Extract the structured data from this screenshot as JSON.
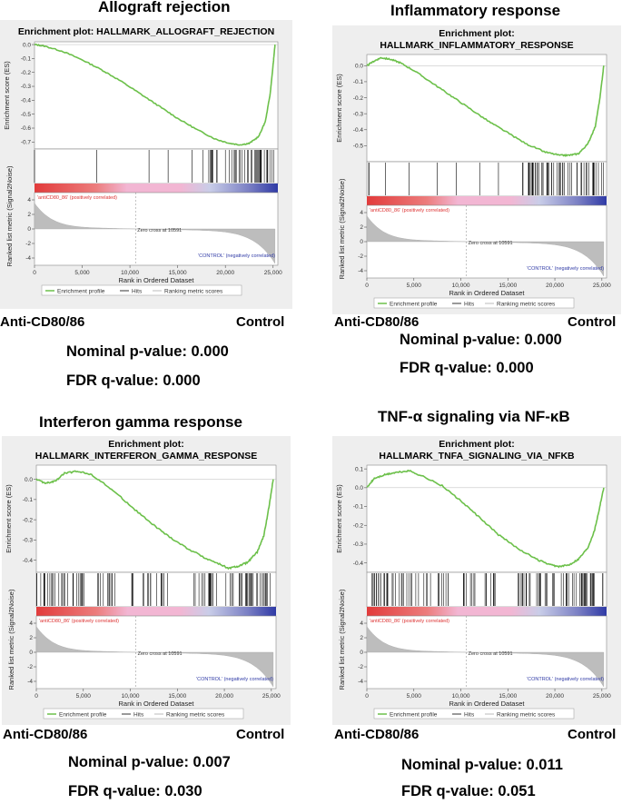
{
  "shared": {
    "es_ylabel": "Enrichment score (ES)",
    "rank_ylabel": "Ranked list metric (Signal2Noise)",
    "xlabel": "Rank in Ordered Dataset",
    "pos_label": "'antiCD80_86' (positively correlated)",
    "neg_label": "'CONTROL' (negatively correlated)",
    "zero_cross": "Zero cross at 10591",
    "legend": [
      "Enrichment profile",
      "Hits",
      "Ranking metric scores"
    ],
    "x_ticks": [
      "0",
      "5,000",
      "10,000",
      "15,000",
      "20,000",
      "25,000"
    ],
    "rank_ticks": [
      "4",
      "2",
      "0",
      "-2",
      "-4"
    ],
    "left_group": "Anti-CD80/86",
    "right_group": "Control",
    "colors": {
      "profile": "#6cc04a",
      "heat_red": "#e23b3b",
      "heat_pink": "#f2b6d3",
      "heat_blue": "#2f3aa6",
      "metric": "#bdbdbd"
    }
  },
  "panels": [
    {
      "heading": "Allograft rejection",
      "plot_title": "Enrichment plot: HALLMARK_ALLOGRAFT_REJECTION",
      "nominal_p": "Nominal p-value: 0.000",
      "fdr_q": "FDR q-value: 0.000",
      "chart_data": {
        "type": "line",
        "title": "Enrichment plot: HALLMARK_ALLOGRAFT_REJECTION",
        "xlabel": "Rank in Ordered Dataset",
        "ylabel": "Enrichment score (ES)",
        "xlim": [
          0,
          25500
        ],
        "ylim": [
          -0.75,
          0.02
        ],
        "y_ticks": [
          "0.0",
          "-0.1",
          "-0.2",
          "-0.3",
          "-0.4",
          "-0.5",
          "-0.6",
          "-0.7"
        ],
        "y_tick_values": [
          0,
          -0.1,
          -0.2,
          -0.3,
          -0.4,
          -0.5,
          -0.6,
          -0.7
        ],
        "x": [
          0,
          1000,
          3000,
          5000,
          7000,
          9000,
          11000,
          13000,
          15000,
          17000,
          19000,
          20500,
          21500,
          22500,
          23500,
          24200,
          24700,
          25000,
          25200
        ],
        "values": [
          0.0,
          -0.01,
          -0.05,
          -0.11,
          -0.18,
          -0.26,
          -0.35,
          -0.44,
          -0.53,
          -0.61,
          -0.68,
          -0.71,
          -0.72,
          -0.71,
          -0.66,
          -0.55,
          -0.35,
          -0.15,
          0.0
        ],
        "hit_ranges": [
          [
            0,
            200
          ],
          [
            6500,
            6600
          ],
          [
            12000,
            12100
          ],
          [
            14000,
            14100
          ],
          [
            16500,
            16600
          ],
          [
            17500,
            25200
          ]
        ],
        "hit_density": 0.55,
        "zero_cross": 10591
      }
    },
    {
      "heading": "Inflammatory response",
      "plot_title_lines": [
        "Enrichment plot:",
        "HALLMARK_INFLAMMATORY_RESPONSE"
      ],
      "nominal_p": "Nominal p-value: 0.000",
      "fdr_q": "FDR q-value: 0.000",
      "chart_data": {
        "type": "line",
        "title": "Enrichment plot: HALLMARK_INFLAMMATORY_RESPONSE",
        "xlabel": "Rank in Ordered Dataset",
        "ylabel": "Enrichment score (ES)",
        "xlim": [
          0,
          25500
        ],
        "ylim": [
          -0.6,
          0.07
        ],
        "y_ticks": [
          "0.0",
          "-0.1",
          "-0.2",
          "-0.3",
          "-0.4",
          "-0.5"
        ],
        "y_tick_values": [
          0,
          -0.1,
          -0.2,
          -0.3,
          -0.4,
          -0.5
        ],
        "x": [
          0,
          800,
          1500,
          2500,
          3500,
          5000,
          7000,
          9000,
          11000,
          13000,
          15000,
          17000,
          19000,
          20500,
          21500,
          22500,
          23500,
          24300,
          24800,
          25200
        ],
        "values": [
          0.0,
          0.03,
          0.05,
          0.04,
          0.02,
          -0.03,
          -0.11,
          -0.19,
          -0.27,
          -0.35,
          -0.42,
          -0.49,
          -0.54,
          -0.56,
          -0.56,
          -0.55,
          -0.49,
          -0.38,
          -0.2,
          0.0
        ],
        "hit_ranges": [
          [
            0,
            300
          ],
          [
            2000,
            2100
          ],
          [
            4500,
            4600
          ],
          [
            7500,
            7600
          ],
          [
            9500,
            9600
          ],
          [
            12000,
            12100
          ],
          [
            14000,
            14100
          ],
          [
            16000,
            25200
          ]
        ],
        "hit_density": 0.6,
        "zero_cross": 10591
      }
    },
    {
      "heading": "Interferon gamma response",
      "plot_title_lines": [
        "Enrichment plot:",
        "HALLMARK_INTERFERON_GAMMA_RESPONSE"
      ],
      "nominal_p": "Nominal p-value: 0.007",
      "fdr_q": "FDR q-value: 0.030",
      "chart_data": {
        "type": "line",
        "title": "Enrichment plot: HALLMARK_INTERFERON_GAMMA_RESPONSE",
        "xlabel": "Rank in Ordered Dataset",
        "ylabel": "Enrichment score (ES)",
        "xlim": [
          0,
          25500
        ],
        "ylim": [
          -0.46,
          0.07
        ],
        "y_ticks": [
          "0.0",
          "-0.1",
          "-0.2",
          "-0.3",
          "-0.4"
        ],
        "y_tick_values": [
          0,
          -0.1,
          -0.2,
          -0.3,
          -0.4
        ],
        "x": [
          0,
          1000,
          2000,
          3000,
          4500,
          6000,
          8000,
          10000,
          12000,
          14000,
          16000,
          18000,
          19500,
          20500,
          21500,
          22500,
          23500,
          24200,
          24700,
          25200
        ],
        "values": [
          0.0,
          -0.02,
          -0.01,
          0.03,
          0.04,
          0.02,
          -0.05,
          -0.13,
          -0.21,
          -0.28,
          -0.34,
          -0.39,
          -0.42,
          -0.44,
          -0.43,
          -0.41,
          -0.36,
          -0.28,
          -0.15,
          0.0
        ],
        "hit_ranges": [
          [
            0,
            5500
          ],
          [
            6500,
            8500
          ],
          [
            10000,
            11500
          ],
          [
            11800,
            12500
          ],
          [
            12800,
            14000
          ],
          [
            16500,
            25200
          ]
        ],
        "hit_density": 0.55,
        "zero_cross": 10591
      }
    },
    {
      "heading": "TNF-α signaling via NF-κB",
      "plot_title_lines": [
        "Enrichment plot:",
        "HALLMARK_TNFA_SIGNALING_VIA_NFKB"
      ],
      "nominal_p": "Nominal p-value: 0.011",
      "fdr_q": "FDR q-value: 0.051",
      "chart_data": {
        "type": "line",
        "title": "Enrichment plot: HALLMARK_TNFA_SIGNALING_VIA_NFKB",
        "xlabel": "Rank in Ordered Dataset",
        "ylabel": "Enrichment score (ES)",
        "xlim": [
          0,
          25500
        ],
        "ylim": [
          -0.45,
          0.12
        ],
        "y_ticks": [
          "0.1",
          "0.0",
          "-0.1",
          "-0.2",
          "-0.3",
          "-0.4"
        ],
        "y_tick_values": [
          0.1,
          0,
          -0.1,
          -0.2,
          -0.3,
          -0.4
        ],
        "x": [
          0,
          800,
          2000,
          3000,
          4500,
          6000,
          8000,
          10000,
          12000,
          14000,
          16000,
          18000,
          19500,
          20500,
          21500,
          22500,
          23500,
          24200,
          24700,
          25200
        ],
        "values": [
          0.0,
          0.05,
          0.07,
          0.08,
          0.09,
          0.06,
          0.01,
          -0.07,
          -0.16,
          -0.25,
          -0.32,
          -0.38,
          -0.41,
          -0.42,
          -0.41,
          -0.38,
          -0.32,
          -0.23,
          -0.12,
          0.0
        ],
        "hit_ranges": [
          [
            0,
            5500
          ],
          [
            6000,
            6800
          ],
          [
            7500,
            9000
          ],
          [
            10000,
            11500
          ],
          [
            12500,
            14000
          ],
          [
            16000,
            25200
          ]
        ],
        "hit_density": 0.55,
        "zero_cross": 10591
      }
    }
  ]
}
